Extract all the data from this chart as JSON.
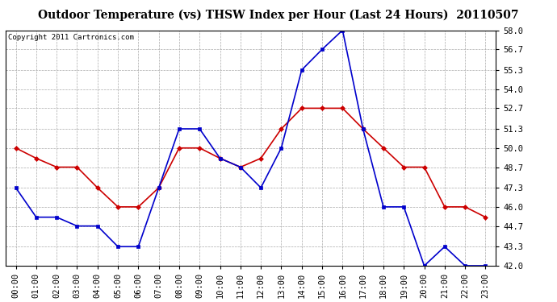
{
  "title": "Outdoor Temperature (vs) THSW Index per Hour (Last 24 Hours)  20110507",
  "copyright": "Copyright 2011 Cartronics.com",
  "hours": [
    "00:00",
    "01:00",
    "02:00",
    "03:00",
    "04:00",
    "05:00",
    "06:00",
    "07:00",
    "08:00",
    "09:00",
    "10:00",
    "11:00",
    "12:00",
    "13:00",
    "14:00",
    "15:00",
    "16:00",
    "17:00",
    "18:00",
    "19:00",
    "20:00",
    "21:00",
    "22:00",
    "23:00"
  ],
  "temp_red": [
    50.0,
    49.3,
    48.7,
    48.7,
    47.3,
    46.0,
    46.0,
    47.3,
    50.0,
    50.0,
    49.3,
    48.7,
    49.3,
    51.3,
    52.7,
    52.7,
    52.7,
    51.3,
    50.0,
    48.7,
    48.7,
    46.0,
    46.0,
    45.3
  ],
  "thsw_blue": [
    47.3,
    45.3,
    45.3,
    44.7,
    44.7,
    43.3,
    43.3,
    47.3,
    51.3,
    51.3,
    49.3,
    48.7,
    47.3,
    50.0,
    55.3,
    56.7,
    58.0,
    51.3,
    46.0,
    46.0,
    42.0,
    43.3,
    42.0,
    42.0
  ],
  "ylim_min": 42.0,
  "ylim_max": 58.0,
  "yticks": [
    42.0,
    43.3,
    44.7,
    46.0,
    47.3,
    48.7,
    50.0,
    51.3,
    52.7,
    54.0,
    55.3,
    56.7,
    58.0
  ],
  "bg_color": "#ffffff",
  "plot_bg_color": "#ffffff",
  "grid_color": "#aaaaaa",
  "red_color": "#cc0000",
  "blue_color": "#0000cc",
  "title_fontsize": 10,
  "copyright_fontsize": 6.5,
  "tick_fontsize": 7.5
}
